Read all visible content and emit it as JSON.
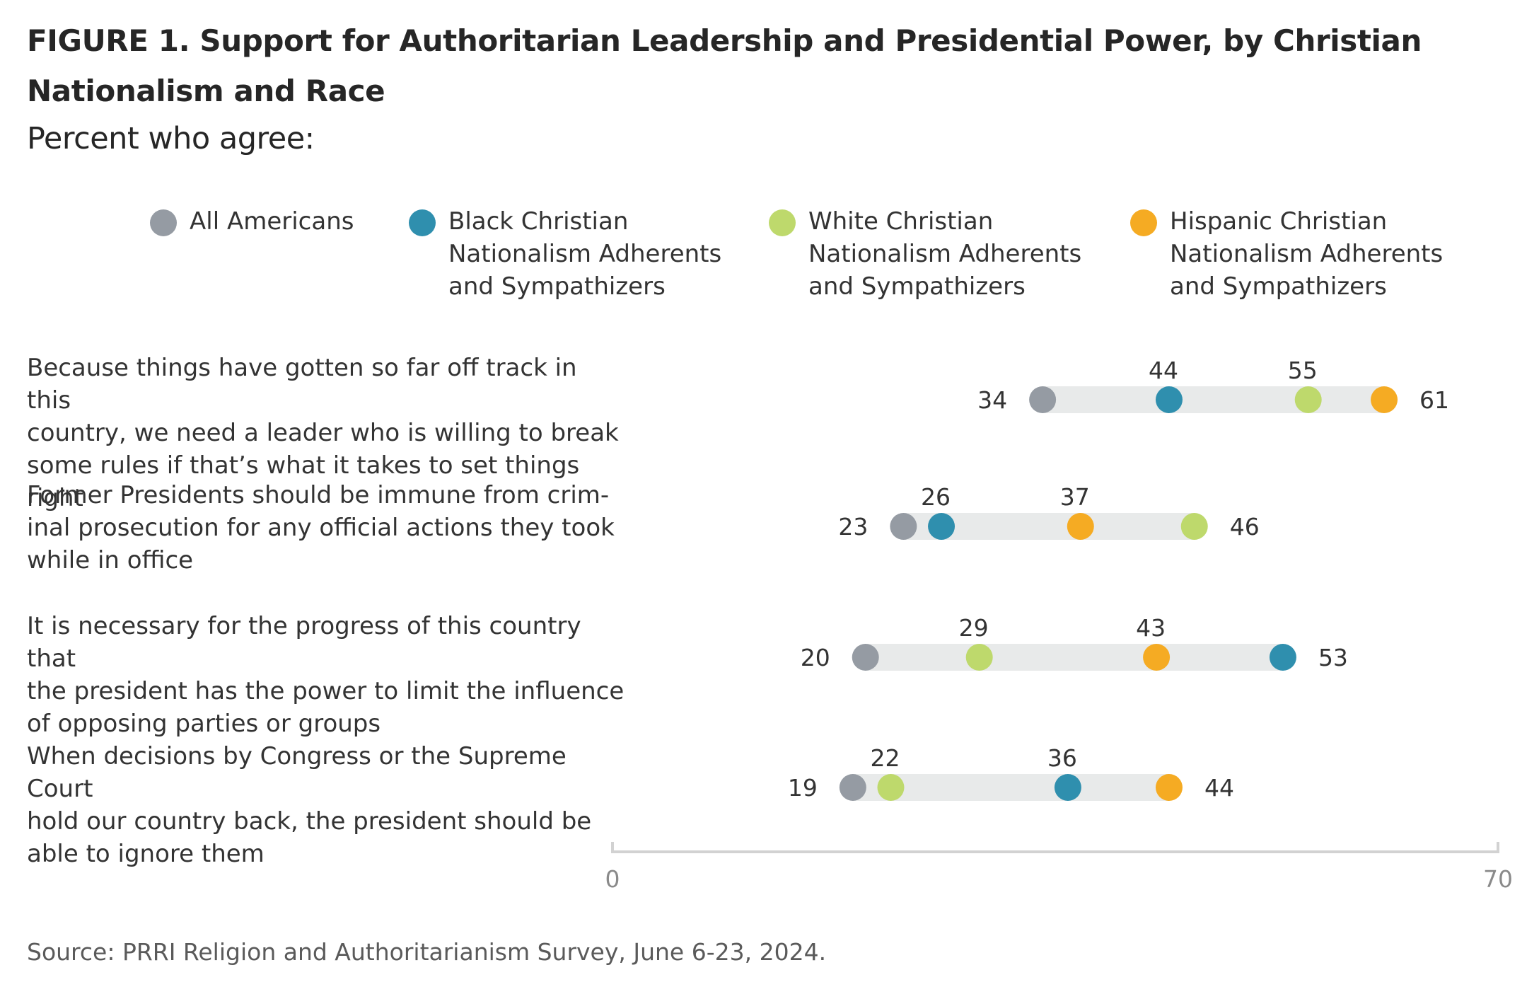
{
  "title": "FIGURE 1. Support for Authoritarian Leadership and Presidential Power, by Christian Nationalism and Race",
  "subtitle": "Percent who agree:",
  "source": "Source: PRRI Religion and Authoritarianism Survey, June 6-23, 2024.",
  "colors": {
    "all_americans": "#959ba3",
    "black": "#2f8fae",
    "white": "#bed96c",
    "hispanic": "#f5ab23",
    "track": "#e8eaea",
    "axis": "#d2d2d2"
  },
  "legend": [
    {
      "label": "All Americans",
      "color": "#959ba3"
    },
    {
      "label": "Black Christian\nNationalism Adherents\nand Sympathizers",
      "color": "#2f8fae"
    },
    {
      "label": "White Christian\nNationalism Adherents\nand Sympathizers",
      "color": "#bed96c"
    },
    {
      "label": "Hispanic Christian\nNationalism Adherents\nand Sympathizers",
      "color": "#f5ab23"
    }
  ],
  "rows": [
    {
      "label": "Because things have gotten so far off track in this\ncountry, we need a leader who is willing to break\nsome rules if that’s what it takes to set things right"
    },
    {
      "label": "Former Presidents should be immune from crim-\ninal prosecution for any official actions they took\nwhile in office"
    },
    {
      "label": "It is necessary for the progress of this country that\nthe president has the power to limit the influence\nof opposing parties or groups"
    },
    {
      "label": "When decisions by Congress or the Supreme Court\nhold our country back, the president should be\nable to ignore them"
    }
  ],
  "chart_data": {
    "type": "dot",
    "title": "FIGURE 1. Support for Authoritarian Leadership and Presidential Power, by Christian Nationalism and Race",
    "subtitle": "Percent who agree:",
    "xlim": [
      0,
      70
    ],
    "xticks": [
      "0",
      "70"
    ],
    "categories": [
      "Because things have gotten so far off track in this country, we need a leader who is willing to break some rules if that’s what it takes to set things right",
      "Former Presidents should be immune from criminal prosecution for any official actions they took while in office",
      "It is necessary for the progress of this country that the president has the power to limit the influence of opposing parties or groups",
      "When decisions by Congress or the Supreme Court hold our country back, the president should be able to ignore them"
    ],
    "series": [
      {
        "name": "All Americans",
        "color": "#959ba3",
        "values": [
          34,
          23,
          20,
          19
        ]
      },
      {
        "name": "Black Christian Nationalism Adherents and Sympathizers",
        "color": "#2f8fae",
        "values": [
          44,
          26,
          53,
          36
        ]
      },
      {
        "name": "White Christian Nationalism Adherents and Sympathizers",
        "color": "#bed96c",
        "values": [
          55,
          46,
          29,
          22
        ]
      },
      {
        "name": "Hispanic Christian Nationalism Adherents and Sympathizers",
        "color": "#f5ab23",
        "values": [
          61,
          37,
          43,
          44
        ]
      }
    ],
    "legend_position": "top"
  }
}
